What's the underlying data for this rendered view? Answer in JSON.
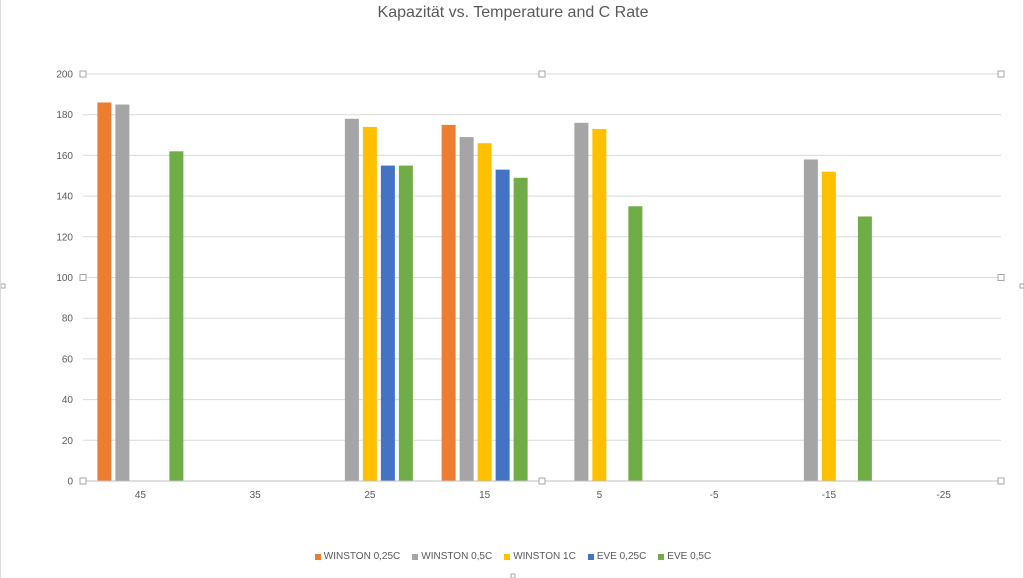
{
  "colors": {
    "background": "#ffffff",
    "gridline": "#d9d9d9",
    "axis": "#bfbfbf",
    "text": "#595959",
    "handle": "#a6a6a6"
  },
  "chart_data": {
    "type": "bar",
    "title": "Kapazität vs. Temperature and C Rate",
    "xlabel": "",
    "ylabel": "",
    "categories": [
      "45",
      "35",
      "25",
      "15",
      "5",
      "-5",
      "-15",
      "-25"
    ],
    "ylim": [
      0,
      200
    ],
    "yticks": [
      0,
      20,
      40,
      60,
      80,
      100,
      120,
      140,
      160,
      180,
      200
    ],
    "grid": true,
    "legend_position": "bottom",
    "series": [
      {
        "name": "WINSTON 0,25C",
        "color": "#ED7D31",
        "values": [
          186,
          null,
          null,
          175,
          null,
          null,
          null,
          null
        ]
      },
      {
        "name": "WINSTON 0,5C",
        "color": "#A5A5A5",
        "values": [
          185,
          null,
          178,
          169,
          176,
          null,
          158,
          null
        ]
      },
      {
        "name": "WINSTON 1C",
        "color": "#FFC000",
        "values": [
          null,
          null,
          174,
          166,
          173,
          null,
          152,
          null
        ]
      },
      {
        "name": "EVE 0,25C",
        "color": "#4472C4",
        "values": [
          null,
          null,
          155,
          153,
          null,
          null,
          null,
          null
        ]
      },
      {
        "name": "EVE 0,5C",
        "color": "#70AD47",
        "values": [
          162,
          null,
          155,
          149,
          135,
          null,
          130,
          null
        ]
      }
    ]
  }
}
